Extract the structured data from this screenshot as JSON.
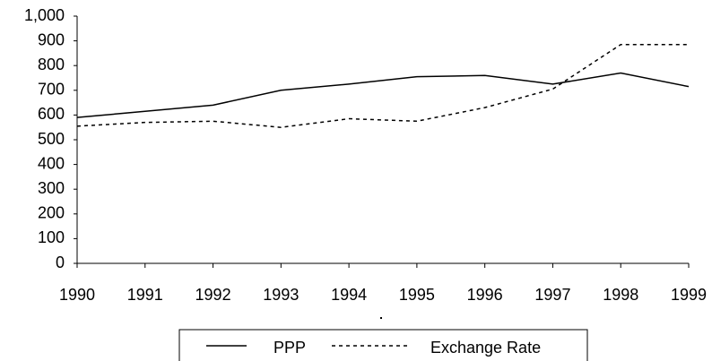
{
  "chart_data": {
    "type": "line",
    "x": [
      1990,
      1991,
      1992,
      1993,
      1994,
      1995,
      1996,
      1997,
      1998,
      1999
    ],
    "series": [
      {
        "name": "PPP",
        "color": "#000000",
        "dash": "solid",
        "values": [
          590,
          615,
          640,
          700,
          725,
          755,
          760,
          725,
          770,
          715
        ]
      },
      {
        "name": "Exchange Rate",
        "color": "#000000",
        "dash": "dashed",
        "values": [
          555,
          570,
          575,
          550,
          585,
          575,
          630,
          705,
          885,
          885
        ]
      }
    ],
    "xlim": [
      1990,
      1999
    ],
    "xticks": [
      1990,
      1991,
      1992,
      1993,
      1994,
      1995,
      1996,
      1997,
      1998,
      1999
    ],
    "ylim": [
      0,
      1000
    ],
    "yticks": [
      0,
      100,
      200,
      300,
      400,
      500,
      600,
      700,
      800,
      900,
      {
        "value": 1000,
        "label": "1,000"
      }
    ],
    "grid": false,
    "legend": "bottom"
  }
}
